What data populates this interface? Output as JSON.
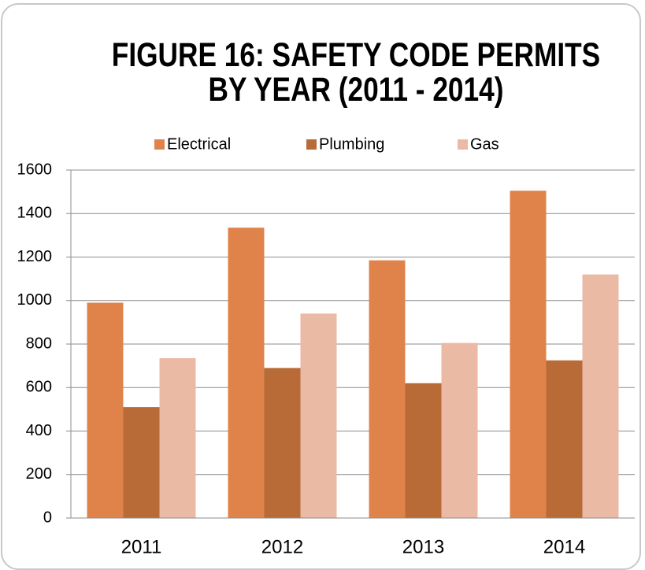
{
  "chart_data": {
    "type": "bar",
    "title": "FIGURE 16: SAFETY CODE PERMITS BY YEAR (2011 - 2014)",
    "categories": [
      "2011",
      "2012",
      "2013",
      "2014"
    ],
    "series": [
      {
        "name": "Electrical",
        "color": "#e0834a",
        "values": [
          990,
          1335,
          1185,
          1505
        ]
      },
      {
        "name": "Plumbing",
        "color": "#b86b37",
        "values": [
          510,
          690,
          620,
          725
        ]
      },
      {
        "name": "Gas",
        "color": "#ebbaa5",
        "values": [
          735,
          940,
          805,
          1120
        ]
      }
    ],
    "ylim": [
      0,
      1600
    ],
    "yticks": [
      0,
      200,
      400,
      600,
      800,
      1000,
      1200,
      1400,
      1600
    ],
    "grid": true,
    "legend": "top"
  }
}
